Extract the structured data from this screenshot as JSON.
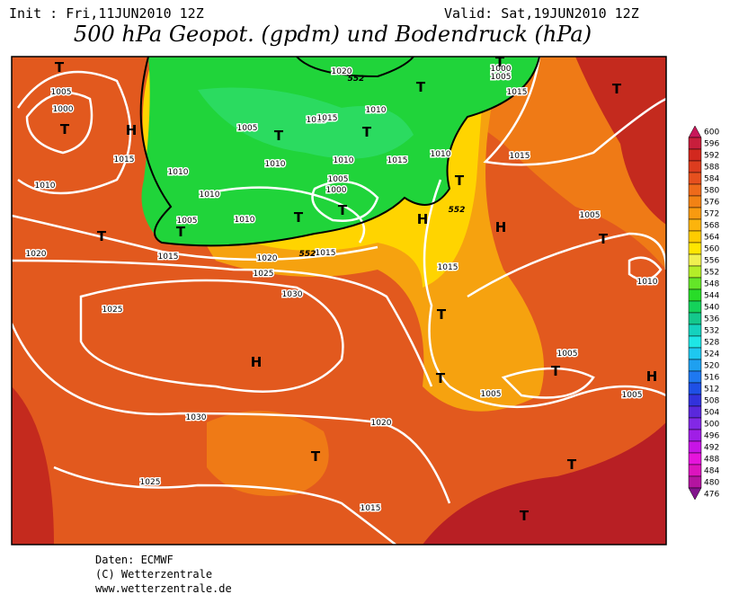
{
  "header": {
    "init": "Init : Fri,11JUN2010 12Z",
    "valid": "Valid: Sat,19JUN2010 12Z",
    "title": "500 hPa Geopot. (gpdm) und Bodendruck (hPa)"
  },
  "map_labels": [
    "T",
    "1005",
    "1000",
    "T",
    "H",
    "1015",
    "1010",
    "1010",
    "1005",
    "T",
    "1010",
    "1015",
    "1020",
    "1010",
    "T",
    "1005",
    "1000",
    "T",
    "1010",
    "1015",
    "1010",
    "1015",
    "T",
    "1010",
    "1010",
    "T",
    "1005",
    "T",
    "H",
    "H",
    "T",
    "1020",
    "1020",
    "1015",
    "1015",
    "1025",
    "1030",
    "1025",
    "H",
    "1015",
    "T",
    "1005",
    "T",
    "1010",
    "T",
    "1015",
    "1005",
    "1000",
    "T",
    "T",
    "1005",
    "T",
    "H",
    "1005",
    "1005",
    "T",
    "1030",
    "1020",
    "T",
    "T",
    "1025",
    "1015",
    "T",
    "552",
    "552",
    "552",
    "1015"
  ],
  "colorbar": {
    "labels": [
      600,
      596,
      592,
      588,
      584,
      580,
      576,
      572,
      568,
      564,
      560,
      556,
      552,
      548,
      544,
      540,
      536,
      532,
      528,
      524,
      520,
      516,
      512,
      508,
      504,
      500,
      496,
      492,
      488,
      484,
      480,
      476
    ]
  },
  "footer": {
    "data": "Daten: ECMWF",
    "copyright": "(C) Wetterzentrale",
    "url": "www.wetterzentrale.de"
  }
}
